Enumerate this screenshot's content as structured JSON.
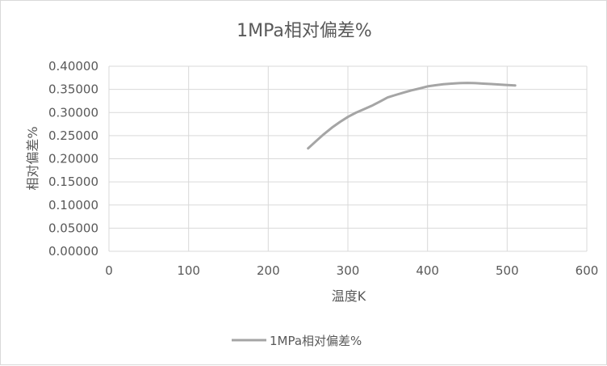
{
  "chart_data": {
    "type": "line",
    "title": "1MPa相对偏差%",
    "xlabel": "温度K",
    "ylabel": "相对偏差%",
    "xlim": [
      0,
      600
    ],
    "ylim": [
      0,
      0.4
    ],
    "x_ticks": [
      "0",
      "100",
      "200",
      "300",
      "400",
      "500",
      "600"
    ],
    "y_ticks": [
      "0.00000",
      "0.05000",
      "0.10000",
      "0.15000",
      "0.20000",
      "0.25000",
      "0.30000",
      "0.35000",
      "0.40000"
    ],
    "grid": true,
    "legend_position": "bottom",
    "series": [
      {
        "name": "1MPa相对偏差%",
        "color": "#a5a5a5",
        "x": [
          250,
          260,
          270,
          280,
          290,
          300,
          310,
          320,
          330,
          340,
          350,
          360,
          370,
          380,
          390,
          400,
          410,
          420,
          430,
          440,
          450,
          460,
          470,
          480,
          490,
          500,
          510
        ],
        "y": [
          0.2225,
          0.238,
          0.2535,
          0.2675,
          0.2795,
          0.2905,
          0.2995,
          0.307,
          0.3145,
          0.3235,
          0.3325,
          0.338,
          0.343,
          0.348,
          0.352,
          0.3565,
          0.359,
          0.361,
          0.3625,
          0.3635,
          0.364,
          0.3635,
          0.3625,
          0.3615,
          0.3605,
          0.3595,
          0.3585
        ]
      }
    ]
  }
}
